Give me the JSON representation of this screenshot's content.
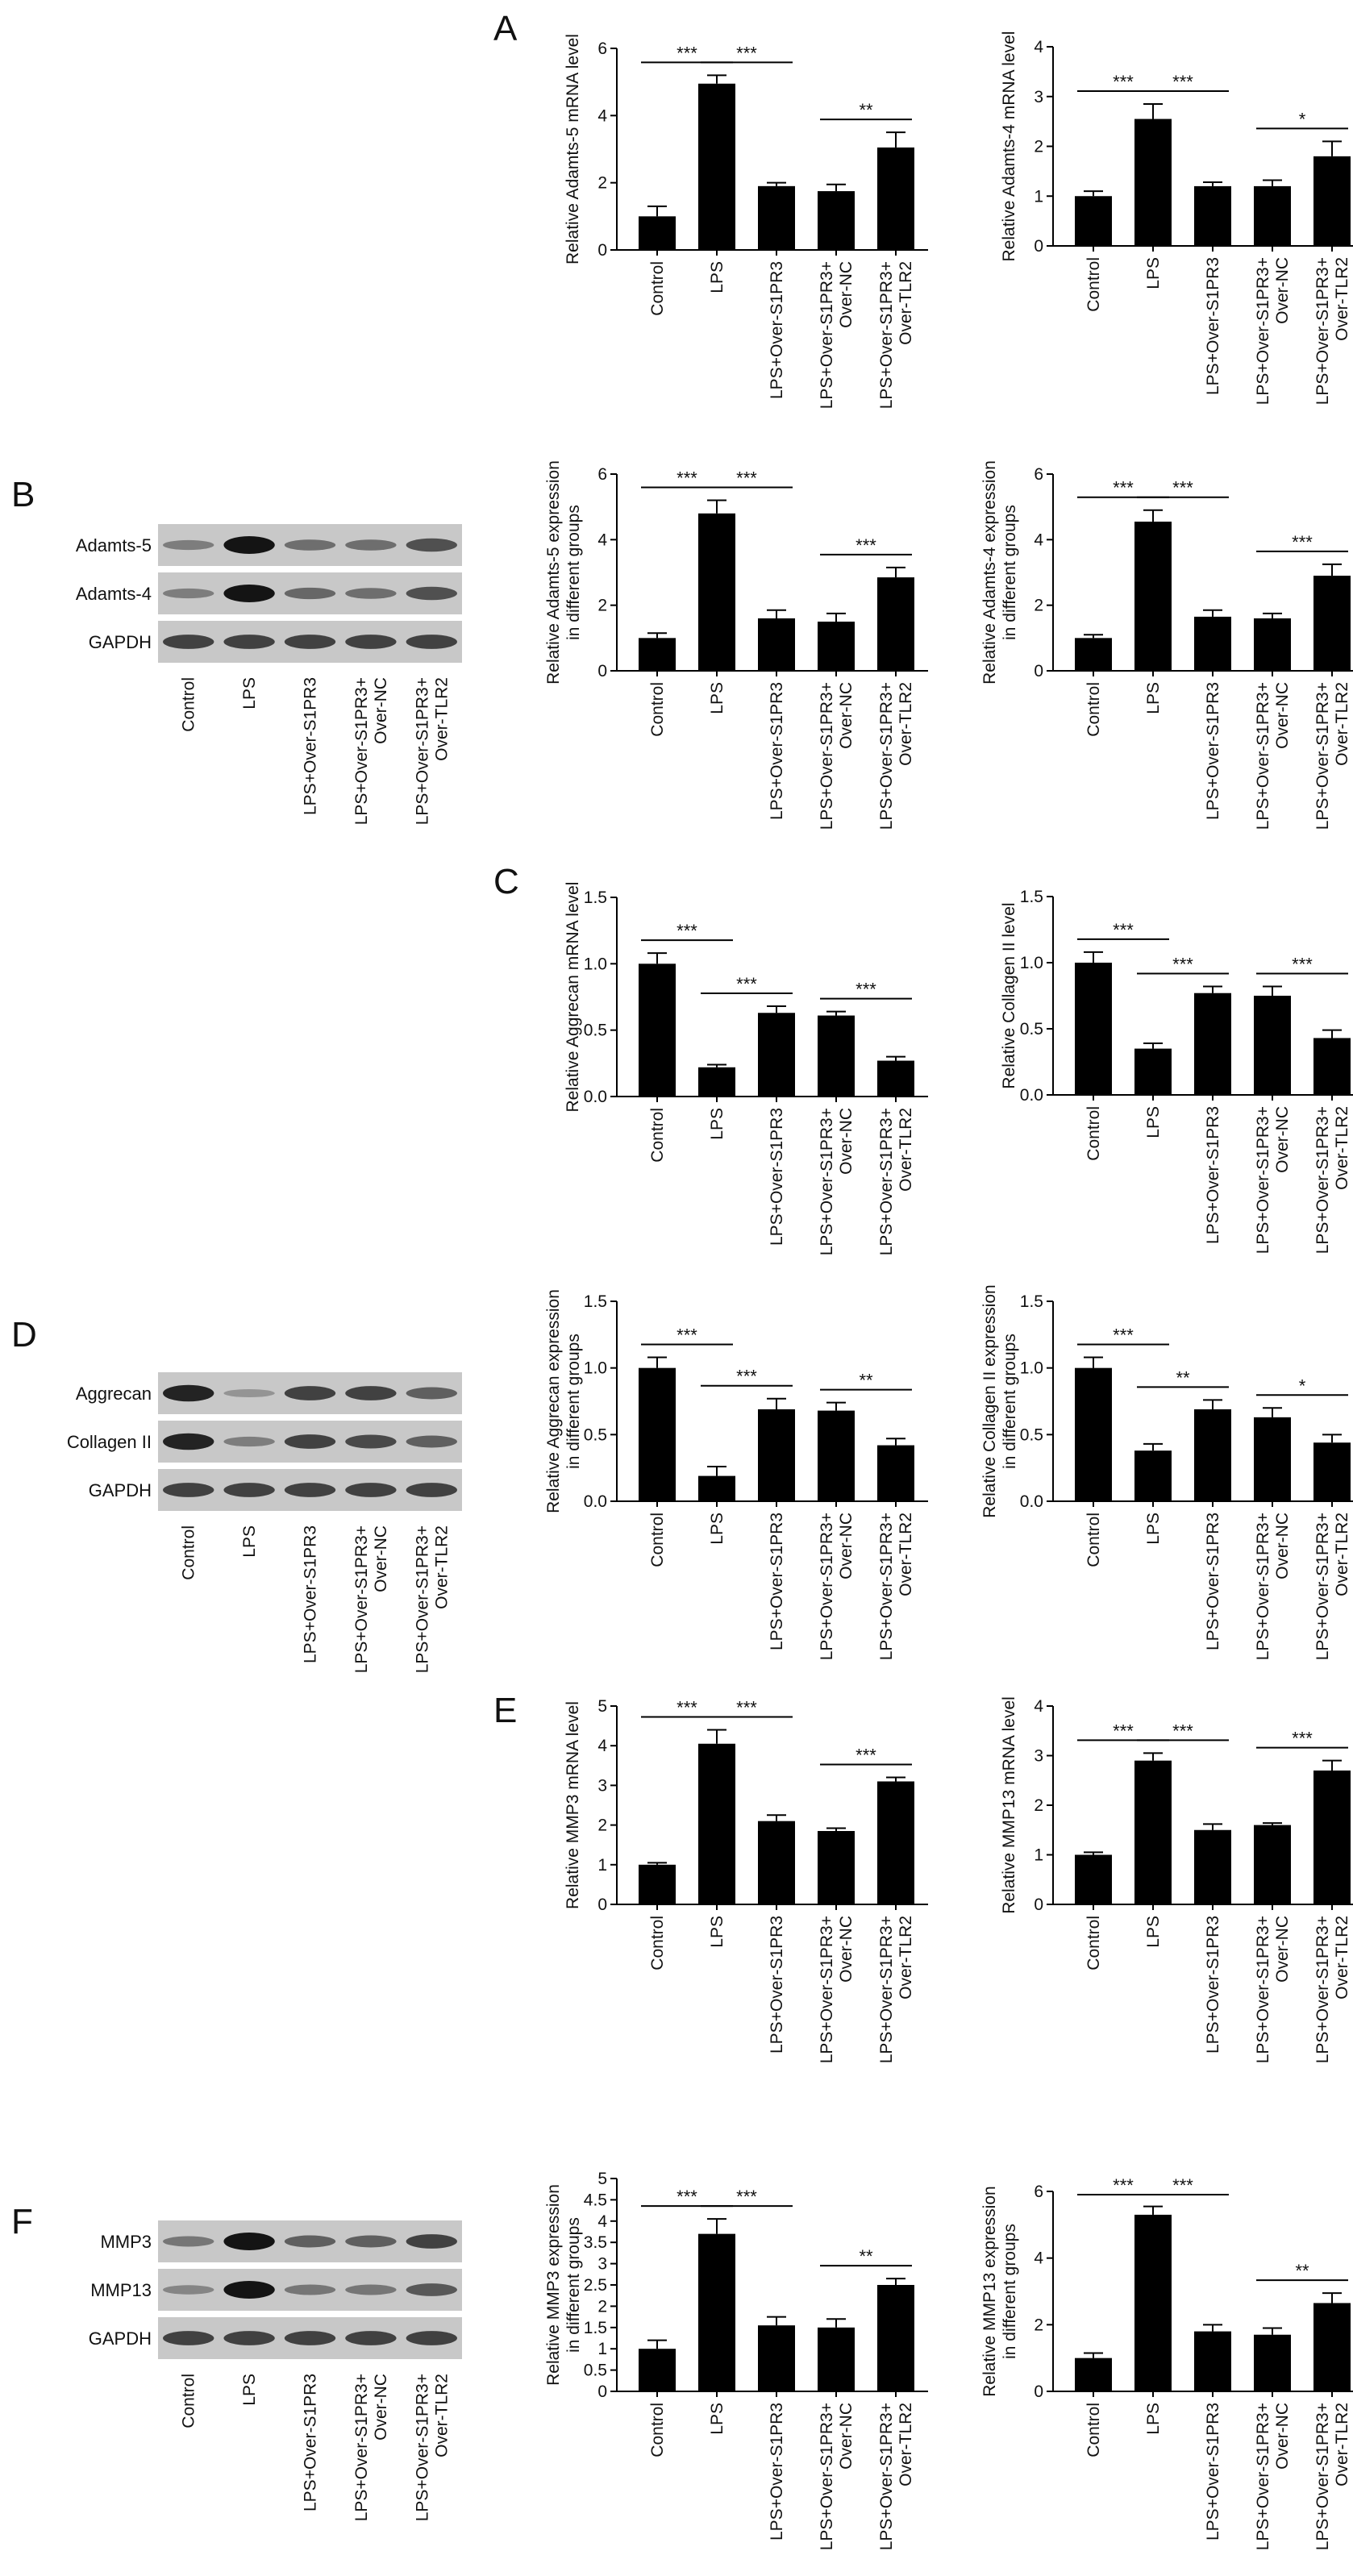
{
  "figure": {
    "categories": [
      "Control",
      "LPS",
      "LPS+Over-S1PR3",
      "LPS+Over-S1PR3+\nOver-NC",
      "LPS+Over-S1PR3+\nOver-TLR2"
    ],
    "panel_letters": [
      "A",
      "B",
      "C",
      "D",
      "E",
      "F"
    ],
    "colors": {
      "bar": "#000000",
      "axis": "#000000",
      "background": "#ffffff",
      "blot_bg": "#c8c8c8",
      "band": "#2a2a2a"
    }
  },
  "chart_data": [
    {
      "type": "bar",
      "ylabel": "Relative Adamts-5 mRNA level",
      "ylim": [
        0,
        6
      ],
      "yticks": [
        0,
        2,
        4,
        6
      ],
      "values": [
        1.0,
        4.95,
        1.9,
        1.75,
        3.05
      ],
      "errors": [
        0.3,
        0.25,
        0.1,
        0.2,
        0.45
      ],
      "significance": [
        {
          "from": 0,
          "to": 1,
          "label": "***"
        },
        {
          "from": 1,
          "to": 2,
          "label": "***"
        },
        {
          "from": 3,
          "to": 4,
          "label": "**"
        }
      ]
    },
    {
      "type": "bar",
      "ylabel": "Relative Adamts-4 mRNA level",
      "ylim": [
        0,
        4
      ],
      "yticks": [
        0,
        1,
        2,
        3,
        4
      ],
      "values": [
        1.0,
        2.55,
        1.2,
        1.2,
        1.8
      ],
      "errors": [
        0.1,
        0.3,
        0.08,
        0.12,
        0.3
      ],
      "significance": [
        {
          "from": 0,
          "to": 1,
          "label": "***"
        },
        {
          "from": 1,
          "to": 2,
          "label": "***"
        },
        {
          "from": 3,
          "to": 4,
          "label": "*"
        }
      ]
    },
    {
      "type": "bar",
      "ylabel": "Relative Adamts-5 expression\nin different groups",
      "ylim": [
        0,
        6
      ],
      "yticks": [
        0,
        2,
        4,
        6
      ],
      "values": [
        1.0,
        4.8,
        1.6,
        1.5,
        2.85
      ],
      "errors": [
        0.15,
        0.4,
        0.25,
        0.25,
        0.3
      ],
      "significance": [
        {
          "from": 0,
          "to": 1,
          "label": "***"
        },
        {
          "from": 1,
          "to": 2,
          "label": "***"
        },
        {
          "from": 3,
          "to": 4,
          "label": "***"
        }
      ]
    },
    {
      "type": "bar",
      "ylabel": "Relative Adamts-4 expression\nin different groups",
      "ylim": [
        0,
        6
      ],
      "yticks": [
        0,
        2,
        4,
        6
      ],
      "values": [
        1.0,
        4.55,
        1.65,
        1.6,
        2.9
      ],
      "errors": [
        0.1,
        0.35,
        0.2,
        0.15,
        0.35
      ],
      "significance": [
        {
          "from": 0,
          "to": 1,
          "label": "***"
        },
        {
          "from": 1,
          "to": 2,
          "label": "***"
        },
        {
          "from": 3,
          "to": 4,
          "label": "***"
        }
      ]
    },
    {
      "type": "bar",
      "ylabel": "Relative Aggrecan mRNA level",
      "ylim": [
        0,
        1.5
      ],
      "yticks": [
        0.0,
        0.5,
        1.0,
        1.5
      ],
      "values": [
        1.0,
        0.22,
        0.63,
        0.61,
        0.27
      ],
      "errors": [
        0.08,
        0.02,
        0.05,
        0.03,
        0.03
      ],
      "significance": [
        {
          "from": 0,
          "to": 1,
          "label": "***"
        },
        {
          "from": 1,
          "to": 2,
          "label": "***"
        },
        {
          "from": 3,
          "to": 4,
          "label": "***"
        }
      ]
    },
    {
      "type": "bar",
      "ylabel": "Relative Collagen II level",
      "ylim": [
        0,
        1.5
      ],
      "yticks": [
        0.0,
        0.5,
        1.0,
        1.5
      ],
      "values": [
        1.0,
        0.35,
        0.77,
        0.75,
        0.43
      ],
      "errors": [
        0.08,
        0.04,
        0.05,
        0.07,
        0.06
      ],
      "significance": [
        {
          "from": 0,
          "to": 1,
          "label": "***"
        },
        {
          "from": 1,
          "to": 2,
          "label": "***"
        },
        {
          "from": 3,
          "to": 4,
          "label": "***"
        }
      ]
    },
    {
      "type": "bar",
      "ylabel": "Relative Aggrecan expression\nin different groups",
      "ylim": [
        0,
        1.5
      ],
      "yticks": [
        0.0,
        0.5,
        1.0,
        1.5
      ],
      "values": [
        1.0,
        0.19,
        0.69,
        0.68,
        0.42
      ],
      "errors": [
        0.08,
        0.07,
        0.08,
        0.06,
        0.05
      ],
      "significance": [
        {
          "from": 0,
          "to": 1,
          "label": "***"
        },
        {
          "from": 1,
          "to": 2,
          "label": "***"
        },
        {
          "from": 3,
          "to": 4,
          "label": "**"
        }
      ]
    },
    {
      "type": "bar",
      "ylabel": "Relative Collagen II expression\nin different groups",
      "ylim": [
        0,
        1.5
      ],
      "yticks": [
        0.0,
        0.5,
        1.0,
        1.5
      ],
      "values": [
        1.0,
        0.38,
        0.69,
        0.63,
        0.44
      ],
      "errors": [
        0.08,
        0.05,
        0.07,
        0.07,
        0.06
      ],
      "significance": [
        {
          "from": 0,
          "to": 1,
          "label": "***"
        },
        {
          "from": 1,
          "to": 2,
          "label": "**"
        },
        {
          "from": 3,
          "to": 4,
          "label": "*"
        }
      ]
    },
    {
      "type": "bar",
      "ylabel": "Relative MMP3 mRNA level",
      "ylim": [
        0,
        5
      ],
      "yticks": [
        0,
        1,
        2,
        3,
        4,
        5
      ],
      "values": [
        1.0,
        4.05,
        2.1,
        1.85,
        3.1
      ],
      "errors": [
        0.05,
        0.35,
        0.15,
        0.07,
        0.1
      ],
      "significance": [
        {
          "from": 0,
          "to": 1,
          "label": "***"
        },
        {
          "from": 1,
          "to": 2,
          "label": "***"
        },
        {
          "from": 3,
          "to": 4,
          "label": "***"
        }
      ]
    },
    {
      "type": "bar",
      "ylabel": "Relative MMP13 mRNA level",
      "ylim": [
        0,
        4
      ],
      "yticks": [
        0,
        1,
        2,
        3,
        4
      ],
      "values": [
        1.0,
        2.9,
        1.5,
        1.6,
        2.7
      ],
      "errors": [
        0.05,
        0.15,
        0.12,
        0.04,
        0.2
      ],
      "significance": [
        {
          "from": 0,
          "to": 1,
          "label": "***"
        },
        {
          "from": 1,
          "to": 2,
          "label": "***"
        },
        {
          "from": 3,
          "to": 4,
          "label": "***"
        }
      ]
    },
    {
      "type": "bar",
      "ylabel": "Relative MMP3 expression\nin different groups",
      "ylim": [
        0,
        5
      ],
      "yticks": [
        0,
        0.5,
        1,
        1.5,
        2,
        2.5,
        3,
        3.5,
        4,
        4.5,
        5
      ],
      "tick_labels": [
        "0",
        "0.5",
        "1",
        "1.5",
        "2",
        "2.5",
        "3",
        "3.5",
        "4",
        "4.5",
        "5"
      ],
      "values": [
        1.0,
        3.7,
        1.55,
        1.5,
        2.5
      ],
      "errors": [
        0.2,
        0.35,
        0.2,
        0.2,
        0.15
      ],
      "significance": [
        {
          "from": 0,
          "to": 1,
          "label": "***"
        },
        {
          "from": 1,
          "to": 2,
          "label": "***"
        },
        {
          "from": 3,
          "to": 4,
          "label": "**"
        }
      ]
    },
    {
      "type": "bar",
      "ylabel": "Relative MMP13 expression\nin different groups",
      "ylim": [
        0,
        6
      ],
      "yticks": [
        0,
        2,
        4,
        6
      ],
      "values": [
        1.0,
        5.3,
        1.8,
        1.7,
        2.65
      ],
      "errors": [
        0.15,
        0.25,
        0.2,
        0.2,
        0.3
      ],
      "significance": [
        {
          "from": 0,
          "to": 1,
          "label": "***"
        },
        {
          "from": 1,
          "to": 2,
          "label": "***"
        },
        {
          "from": 3,
          "to": 4,
          "label": "**"
        }
      ]
    }
  ],
  "blots": [
    {
      "rows": [
        {
          "label": "Adamts-5",
          "intensity": [
            0.3,
            1.0,
            0.4,
            0.4,
            0.6
          ]
        },
        {
          "label": "Adamts-4",
          "intensity": [
            0.3,
            1.0,
            0.45,
            0.4,
            0.6
          ]
        },
        {
          "label": "GAPDH",
          "intensity": [
            0.7,
            0.7,
            0.7,
            0.7,
            0.7
          ]
        }
      ]
    },
    {
      "rows": [
        {
          "label": "Aggrecan",
          "intensity": [
            0.9,
            0.15,
            0.7,
            0.7,
            0.5
          ]
        },
        {
          "label": "Collagen II",
          "intensity": [
            0.9,
            0.3,
            0.7,
            0.65,
            0.5
          ]
        },
        {
          "label": "GAPDH",
          "intensity": [
            0.7,
            0.7,
            0.7,
            0.7,
            0.7
          ]
        }
      ]
    },
    {
      "rows": [
        {
          "label": "MMP3",
          "intensity": [
            0.35,
            1.0,
            0.5,
            0.5,
            0.7
          ]
        },
        {
          "label": "MMP13",
          "intensity": [
            0.25,
            1.0,
            0.35,
            0.35,
            0.55
          ]
        },
        {
          "label": "GAPDH",
          "intensity": [
            0.7,
            0.7,
            0.7,
            0.7,
            0.7
          ]
        }
      ]
    }
  ]
}
